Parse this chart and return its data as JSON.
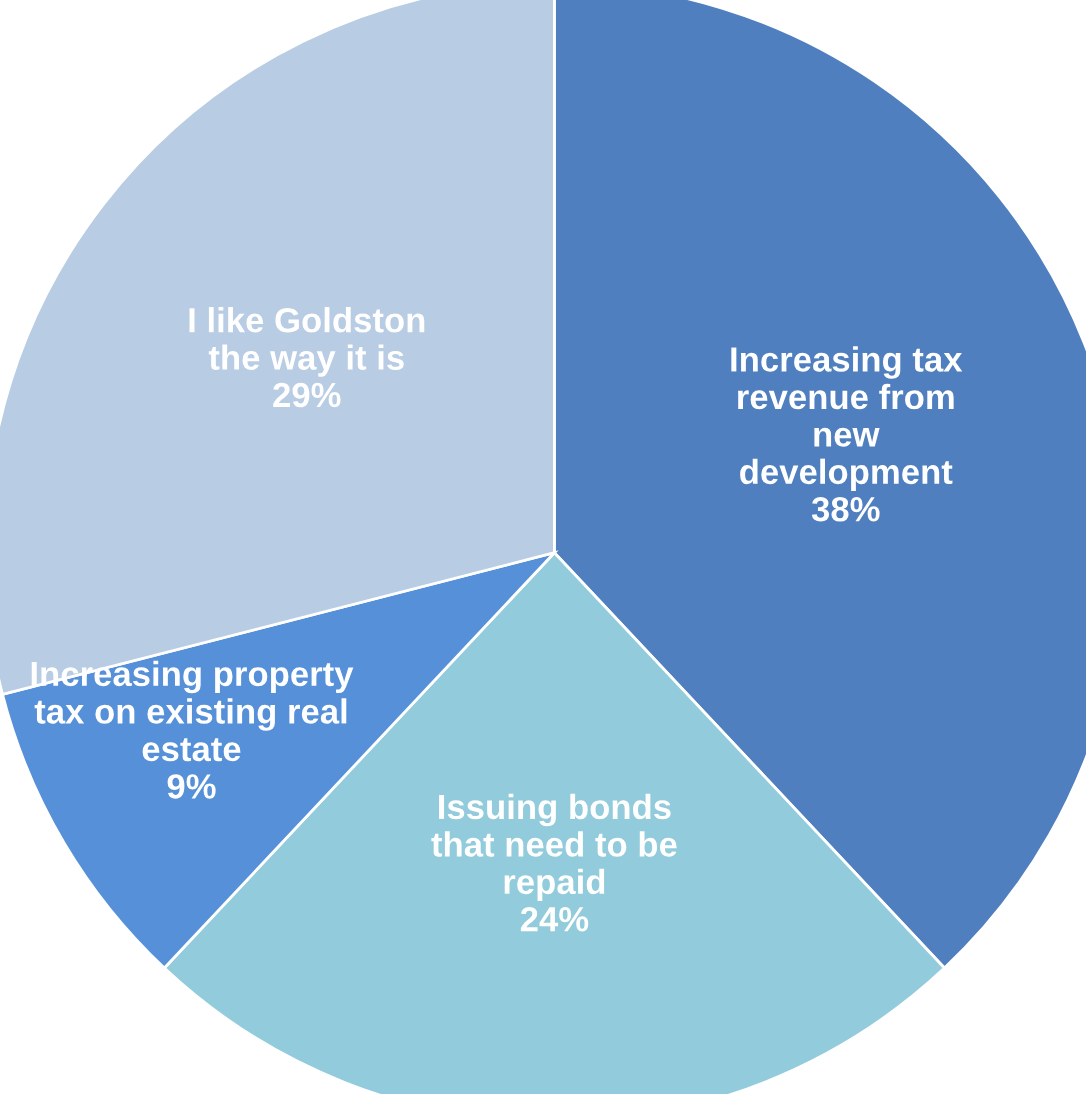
{
  "chart_data": {
    "type": "pie",
    "categories": [
      "Increasing tax\nrevenue from\nnew\ndevelopment",
      "Issuing bonds\nthat need to be\nrepaid",
      "Increasing property\ntax on existing real\nestate",
      "I like Goldston\nthe way it is"
    ],
    "values": [
      38,
      24,
      9,
      29
    ],
    "value_labels": [
      "38%",
      "24%",
      "9%",
      "29%"
    ],
    "colors": [
      "#4f7fbf",
      "#92cbdb",
      "#5590d8",
      "#b8cce4"
    ],
    "legend": false
  }
}
